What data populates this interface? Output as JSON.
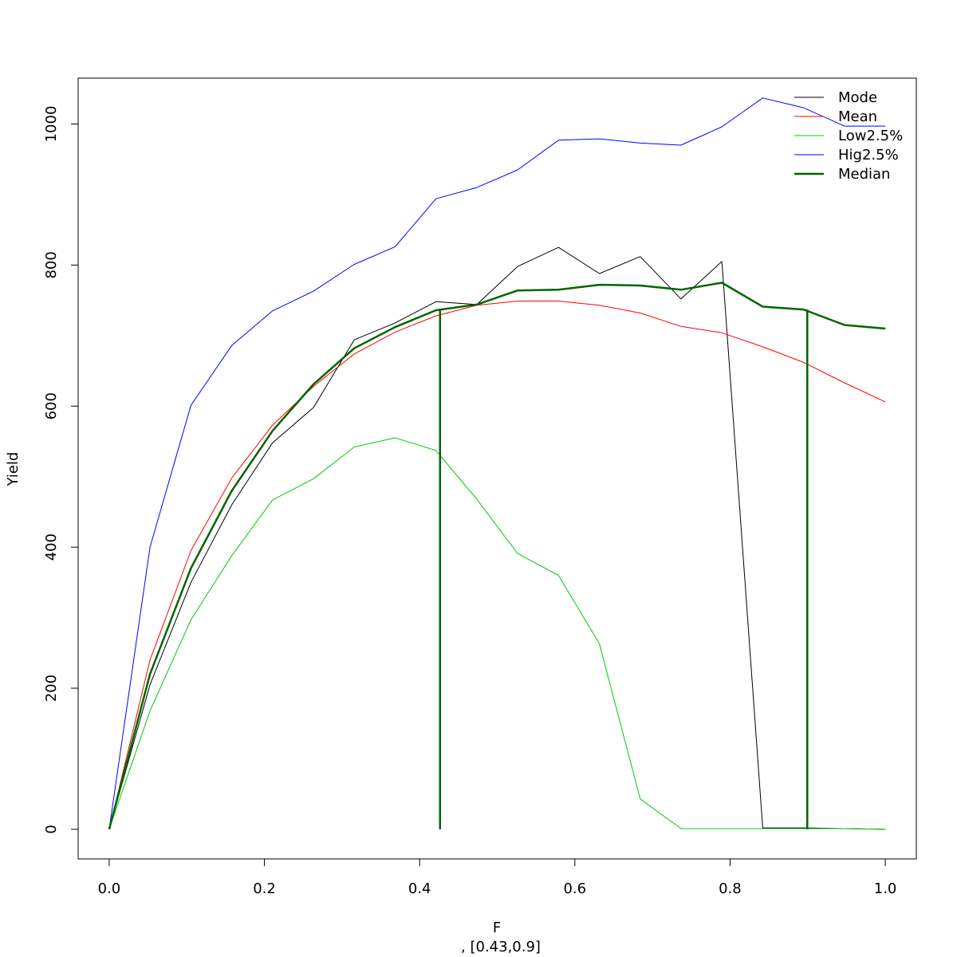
{
  "chart_data": {
    "type": "line",
    "title": "",
    "xlabel": "F",
    "subtitle": ", [0.43,0.9]",
    "ylabel": "Yield",
    "xlim": [
      -0.04,
      1.04
    ],
    "ylim": [
      -42,
      1065
    ],
    "x_ticks": [
      0.0,
      0.2,
      0.4,
      0.6,
      0.8,
      1.0
    ],
    "x_tick_labels": [
      "0.0",
      "0.2",
      "0.4",
      "0.6",
      "0.8",
      "1.0"
    ],
    "y_ticks": [
      0,
      200,
      400,
      600,
      800,
      1000
    ],
    "y_tick_labels": [
      "0",
      "200",
      "400",
      "600",
      "800",
      "1000"
    ],
    "grid": false,
    "legend_position": "top-right",
    "x": [
      0.0,
      0.0526,
      0.1053,
      0.1579,
      0.2105,
      0.2632,
      0.3158,
      0.3684,
      0.4211,
      0.4737,
      0.5263,
      0.5789,
      0.6316,
      0.6842,
      0.7368,
      0.7895,
      0.8421,
      0.8947,
      0.9474,
      1.0
    ],
    "series": [
      {
        "name": "Mode",
        "color": "#000000",
        "width": 1,
        "values": [
          0,
          205,
          350,
          460,
          548,
          598,
          694,
          718,
          748,
          744,
          798,
          825,
          788,
          812,
          752,
          805,
          2,
          2,
          1,
          0
        ]
      },
      {
        "name": "Mean",
        "color": "#ff0000",
        "width": 1,
        "values": [
          0,
          240,
          395,
          498,
          573,
          628,
          674,
          705,
          728,
          743,
          749,
          749,
          743,
          732,
          713,
          704,
          684,
          662,
          633,
          606
        ]
      },
      {
        "name": "Low2.5%",
        "color": "#00cc00",
        "width": 1,
        "values": [
          0,
          168,
          297,
          388,
          467,
          497,
          542,
          555,
          537,
          468,
          391,
          360,
          263,
          43,
          1,
          1,
          1,
          1,
          1,
          0
        ]
      },
      {
        "name": "Hig2.5%",
        "color": "#0000ff",
        "width": 1,
        "values": [
          0,
          400,
          601,
          686,
          735,
          763,
          801,
          826,
          894,
          910,
          935,
          977,
          979,
          973,
          970,
          996,
          1037,
          1023,
          997,
          997
        ]
      },
      {
        "name": "Median",
        "color": "#006400",
        "width": 2.5,
        "values": [
          0,
          220,
          370,
          480,
          565,
          631,
          682,
          712,
          736,
          744,
          764,
          765,
          772,
          771,
          765,
          775,
          741,
          737,
          715,
          710
        ]
      }
    ],
    "vertical_lines": [
      {
        "x": 0.4263,
        "y_from": 0,
        "y_to": 736,
        "color": "#006400",
        "width": 2.5
      },
      {
        "x": 0.8995,
        "y_from": 0,
        "y_to": 737,
        "color": "#006400",
        "width": 2.5
      }
    ]
  }
}
